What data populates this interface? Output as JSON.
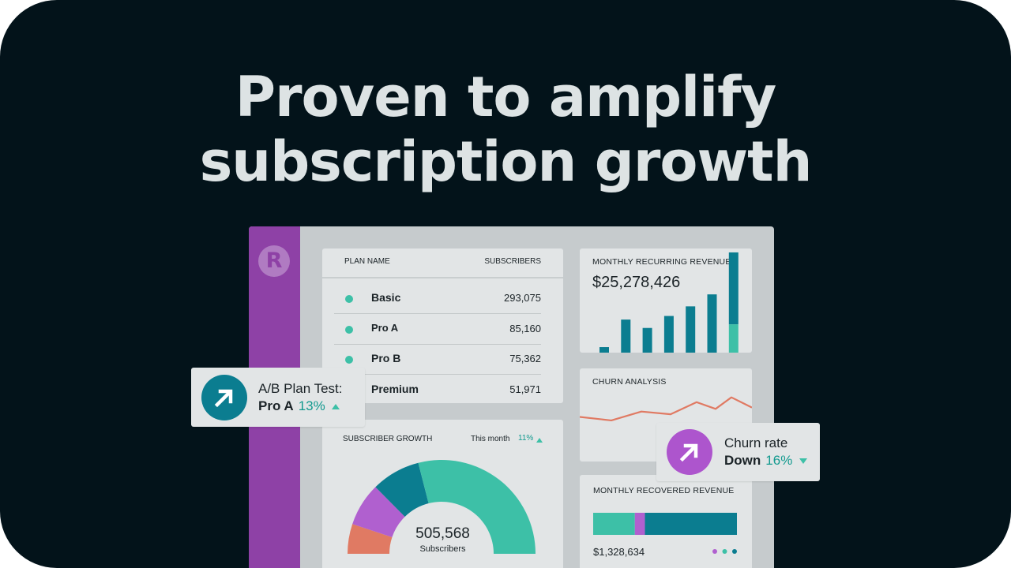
{
  "headline": {
    "line1": "Proven to amplify",
    "line2": "subscription growth"
  },
  "logo": "R",
  "plans_table": {
    "col_plan": "PLAN NAME",
    "col_subscribers": "SUBSCRIBERS",
    "rows": [
      {
        "name": "Basic",
        "subscribers": "293,075"
      },
      {
        "name": "Pro A",
        "subscribers": "85,160"
      },
      {
        "name": "Pro B",
        "subscribers": "75,362"
      },
      {
        "name": "Premium",
        "subscribers": "51,971"
      }
    ]
  },
  "mrr": {
    "title": "MONTHLY RECURRING REVENUE",
    "value": "$25,278,426",
    "bars": [
      {
        "top": 0.18,
        "bottom": 0.05
      },
      {
        "top": 0.37,
        "bottom": 0.09
      },
      {
        "top": 0.33,
        "bottom": 0.06
      },
      {
        "top": 0.4,
        "bottom": 0.09
      },
      {
        "top": 0.45,
        "bottom": 0.12
      },
      {
        "top": 0.52,
        "bottom": 0.15
      },
      {
        "top": 0.6,
        "bottom": 0.42
      }
    ]
  },
  "churn": {
    "title": "CHURN ANALYSIS",
    "line": [
      0.25,
      0.12,
      0.45,
      0.35,
      0.8,
      0.55,
      0.98,
      0.6
    ]
  },
  "recovered": {
    "title": "MONTHLY RECOVERED REVENUE",
    "value": "$1,328,634",
    "segments": [
      {
        "share": 0.29,
        "color": "#3dc0a7"
      },
      {
        "share": 0.07,
        "color": "#b060cf"
      },
      {
        "share": 0.64,
        "color": "#0b7d90"
      }
    ],
    "legend_dots": [
      "#b060cf",
      "#3dc0a7",
      "#0b7d90"
    ]
  },
  "growth": {
    "title": "SUBSCRIBER GROWTH",
    "period": "This month",
    "change": "11%",
    "total": "505,568",
    "total_label": "Subscribers",
    "slices": [
      {
        "value": 51971,
        "color": "#e07a63"
      },
      {
        "value": 75362,
        "color": "#b060cf"
      },
      {
        "value": 85160,
        "color": "#0b7d90"
      },
      {
        "value": 293075,
        "color": "#3dc0a7"
      }
    ]
  },
  "ab_test": {
    "label": "A/B Plan Test:",
    "plan": "Pro A",
    "pct": "13%",
    "icon": "arrow-up-right-icon",
    "color": "#0b7d90"
  },
  "churn_rate": {
    "label": "Churn rate",
    "status": "Down",
    "pct": "16%",
    "icon": "arrow-up-right-icon",
    "color": "#ad55cd"
  },
  "colors": {
    "teal": "#3dc0a7",
    "blue": "#0b7d90",
    "purple": "#8e41a6",
    "accent_text": "#139a8f",
    "coral": "#e07a63"
  }
}
